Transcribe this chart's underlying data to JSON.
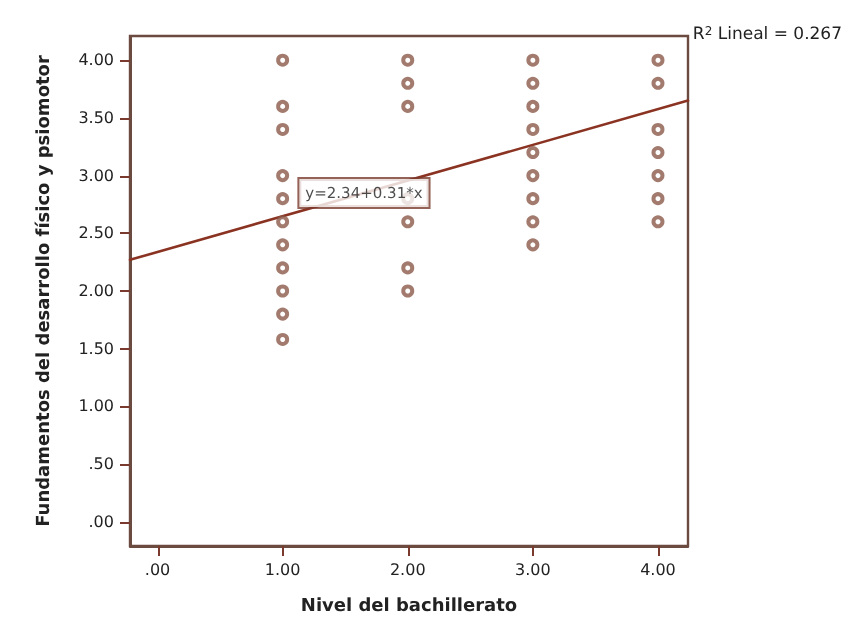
{
  "chart_data": {
    "type": "scatter",
    "xlabel": "Nivel del bachillerato",
    "ylabel": "Fundamentos del desarrollo físico y psiomotor",
    "series": [
      {
        "type": "scatter",
        "marker": "circle",
        "color": "#8b5a4a",
        "x": [
          1,
          1,
          1,
          1,
          1,
          1,
          1,
          1,
          1,
          1,
          1,
          2,
          2,
          2,
          2,
          2,
          2,
          2,
          3,
          3,
          3,
          3,
          3,
          3,
          3,
          3,
          3,
          4,
          4,
          4,
          4,
          4,
          4,
          4
        ],
        "values": [
          4.0,
          3.6,
          3.4,
          3.0,
          2.8,
          2.6,
          2.4,
          2.2,
          2.0,
          1.8,
          1.58,
          4.0,
          3.8,
          3.6,
          2.8,
          2.6,
          2.2,
          2.0,
          4.0,
          3.8,
          3.6,
          3.4,
          3.2,
          3.0,
          2.8,
          2.6,
          2.4,
          4.0,
          3.8,
          3.4,
          3.2,
          3.0,
          2.8,
          2.6
        ]
      },
      {
        "type": "line",
        "color": "#8b3322",
        "x": [
          -0.22,
          4.24
        ],
        "values": [
          2.27,
          3.65
        ]
      }
    ],
    "annotations": [
      {
        "text": "y=2.34+0.31*x",
        "x": 1.65,
        "y": 2.85
      },
      "R$^{2}$ Lineal = 0.267"
    ],
    "xlim": [
      -0.22,
      4.24
    ],
    "ylim": [
      -0.21,
      4.21
    ],
    "xticks": [
      {
        "value": 0,
        "label": ".00"
      },
      {
        "value": 1,
        "label": "1.00"
      },
      {
        "value": 2,
        "label": "2.00"
      },
      {
        "value": 3,
        "label": "3.00"
      },
      {
        "value": 4,
        "label": "4.00"
      }
    ],
    "yticks": [
      {
        "value": 0,
        "label": ".00"
      },
      {
        "value": 0.5,
        "label": ".50"
      },
      {
        "value": 1,
        "label": "1.00"
      },
      {
        "value": 1.5,
        "label": "1.50"
      },
      {
        "value": 2,
        "label": "2.00"
      },
      {
        "value": 2.5,
        "label": "2.50"
      },
      {
        "value": 3,
        "label": "3.00"
      },
      {
        "value": 3.5,
        "label": "3.50"
      },
      {
        "value": 4,
        "label": "4.00"
      }
    ]
  }
}
